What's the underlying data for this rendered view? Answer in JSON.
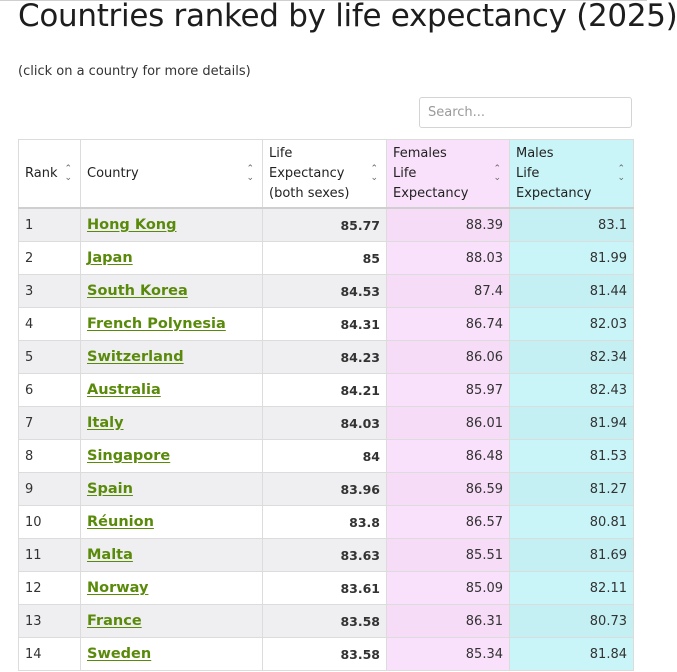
{
  "page": {
    "title": "Countries ranked by life expectancy (2025)",
    "note": "(click on a country for more details)"
  },
  "search": {
    "placeholder": "Search..."
  },
  "table": {
    "headers": {
      "rank": "Rank",
      "country": "Country",
      "both": [
        "Life",
        "Expectancy",
        "(both sexes)"
      ],
      "females": [
        "Females",
        "Life",
        "Expectancy"
      ],
      "males": [
        "Males",
        "Life",
        "Expectancy"
      ]
    },
    "sort_icon": "sort-updown-icon",
    "colors": {
      "link": "#5a8a0a",
      "females_bg": "#fae1fb",
      "males_bg": "#c9f5f8",
      "stripe": "#efeff1"
    },
    "rows": [
      {
        "rank": "1",
        "country": "Hong Kong",
        "both": "85.77",
        "females": "88.39",
        "males": "83.1"
      },
      {
        "rank": "2",
        "country": "Japan",
        "both": "85",
        "females": "88.03",
        "males": "81.99"
      },
      {
        "rank": "3",
        "country": "South Korea",
        "both": "84.53",
        "females": "87.4",
        "males": "81.44"
      },
      {
        "rank": "4",
        "country": "French Polynesia",
        "both": "84.31",
        "females": "86.74",
        "males": "82.03"
      },
      {
        "rank": "5",
        "country": "Switzerland",
        "both": "84.23",
        "females": "86.06",
        "males": "82.34"
      },
      {
        "rank": "6",
        "country": "Australia",
        "both": "84.21",
        "females": "85.97",
        "males": "82.43"
      },
      {
        "rank": "7",
        "country": "Italy",
        "both": "84.03",
        "females": "86.01",
        "males": "81.94"
      },
      {
        "rank": "8",
        "country": "Singapore",
        "both": "84",
        "females": "86.48",
        "males": "81.53"
      },
      {
        "rank": "9",
        "country": "Spain",
        "both": "83.96",
        "females": "86.59",
        "males": "81.27"
      },
      {
        "rank": "10",
        "country": "Réunion",
        "both": "83.8",
        "females": "86.57",
        "males": "80.81"
      },
      {
        "rank": "11",
        "country": "Malta",
        "both": "83.63",
        "females": "85.51",
        "males": "81.69"
      },
      {
        "rank": "12",
        "country": "Norway",
        "both": "83.61",
        "females": "85.09",
        "males": "82.11"
      },
      {
        "rank": "13",
        "country": "France",
        "both": "83.58",
        "females": "86.31",
        "males": "80.73"
      },
      {
        "rank": "14",
        "country": "Sweden",
        "both": "83.58",
        "females": "85.34",
        "males": "81.84"
      }
    ]
  }
}
